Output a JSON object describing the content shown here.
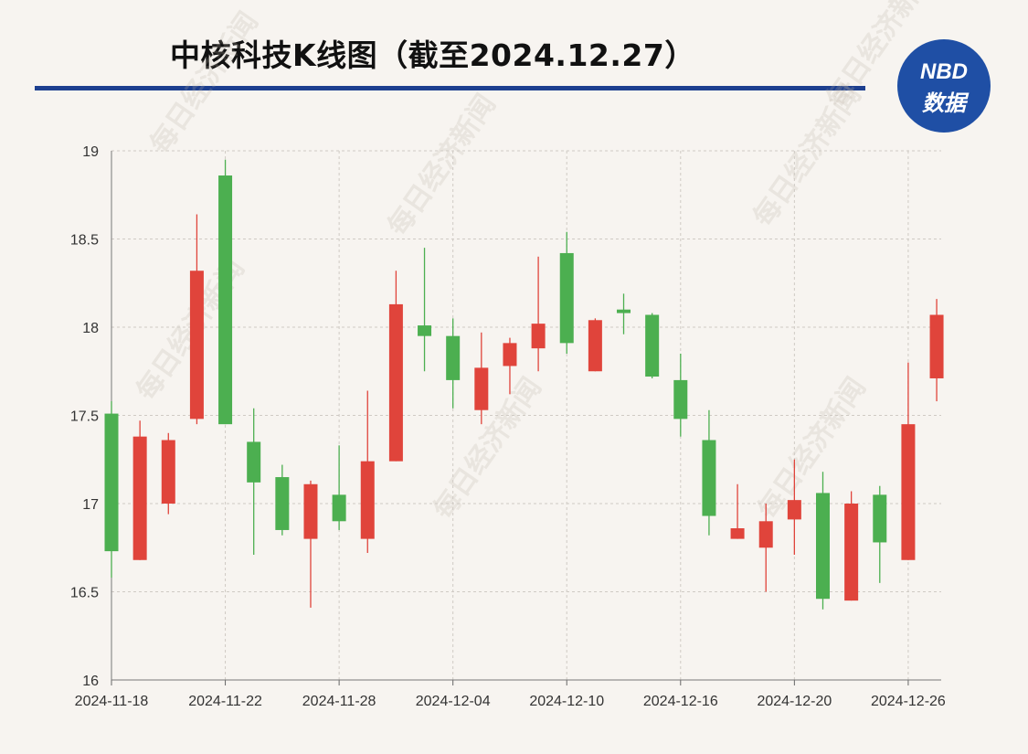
{
  "header": {
    "title": "中核科技K线图（截至2024.12.27）",
    "logo_line1": "NBD",
    "logo_line2": "数据"
  },
  "watermark": "每日经济新闻",
  "colors": {
    "up": "#e0443b",
    "down": "#4caf50",
    "title_rule": "#1d3f8f",
    "logo_bg": "#1f4fa5",
    "background": "#f7f4f0",
    "grid": "#cfcac4"
  },
  "chart_data": {
    "type": "candlestick",
    "ylim": [
      16,
      19
    ],
    "yticks": [
      16,
      16.5,
      17,
      17.5,
      18,
      18.5,
      19
    ],
    "xtick_labels": [
      "2024-11-18",
      "2024-11-22",
      "2024-11-28",
      "2024-12-04",
      "2024-12-10",
      "2024-12-16",
      "2024-12-20",
      "2024-12-26"
    ],
    "xtick_indices": [
      0,
      4,
      8,
      12,
      16,
      20,
      24,
      28
    ],
    "grid": true,
    "candles": [
      {
        "open": 17.51,
        "close": 16.73,
        "high": 17.58,
        "low": 16.58
      },
      {
        "open": 16.68,
        "close": 17.38,
        "high": 17.47,
        "low": 16.68
      },
      {
        "open": 17.0,
        "close": 17.36,
        "high": 17.4,
        "low": 16.94
      },
      {
        "open": 17.48,
        "close": 18.32,
        "high": 18.64,
        "low": 17.45
      },
      {
        "open": 18.86,
        "close": 17.45,
        "high": 18.95,
        "low": 17.45
      },
      {
        "open": 17.35,
        "close": 17.12,
        "high": 17.54,
        "low": 16.71
      },
      {
        "open": 17.15,
        "close": 16.85,
        "high": 17.22,
        "low": 16.82
      },
      {
        "open": 16.8,
        "close": 17.11,
        "high": 17.13,
        "low": 16.41
      },
      {
        "open": 17.05,
        "close": 16.9,
        "high": 17.33,
        "low": 16.85
      },
      {
        "open": 16.8,
        "close": 17.24,
        "high": 17.64,
        "low": 16.72
      },
      {
        "open": 17.24,
        "close": 18.13,
        "high": 18.32,
        "low": 17.24
      },
      {
        "open": 18.01,
        "close": 17.95,
        "high": 18.45,
        "low": 17.75
      },
      {
        "open": 17.95,
        "close": 17.7,
        "high": 18.05,
        "low": 17.54
      },
      {
        "open": 17.53,
        "close": 17.77,
        "high": 17.97,
        "low": 17.45
      },
      {
        "open": 17.78,
        "close": 17.91,
        "high": 17.94,
        "low": 17.62
      },
      {
        "open": 17.88,
        "close": 18.02,
        "high": 18.4,
        "low": 17.75
      },
      {
        "open": 18.42,
        "close": 17.91,
        "high": 18.54,
        "low": 17.85
      },
      {
        "open": 17.75,
        "close": 18.04,
        "high": 18.05,
        "low": 17.75
      },
      {
        "open": 18.1,
        "close": 18.08,
        "high": 18.19,
        "low": 17.96
      },
      {
        "open": 18.07,
        "close": 17.72,
        "high": 18.08,
        "low": 17.71
      },
      {
        "open": 17.7,
        "close": 17.48,
        "high": 17.85,
        "low": 17.38
      },
      {
        "open": 17.36,
        "close": 16.93,
        "high": 17.53,
        "low": 16.82
      },
      {
        "open": 16.8,
        "close": 16.86,
        "high": 17.11,
        "low": 16.8
      },
      {
        "open": 16.75,
        "close": 16.9,
        "high": 17.0,
        "low": 16.5
      },
      {
        "open": 16.91,
        "close": 17.02,
        "high": 17.25,
        "low": 16.71
      },
      {
        "open": 17.06,
        "close": 16.46,
        "high": 17.18,
        "low": 16.4
      },
      {
        "open": 16.45,
        "close": 17.0,
        "high": 17.07,
        "low": 16.45
      },
      {
        "open": 17.05,
        "close": 16.78,
        "high": 17.1,
        "low": 16.55
      },
      {
        "open": 16.68,
        "close": 17.45,
        "high": 17.8,
        "low": 16.68
      },
      {
        "open": 17.71,
        "close": 18.07,
        "high": 18.16,
        "low": 17.58
      }
    ]
  }
}
